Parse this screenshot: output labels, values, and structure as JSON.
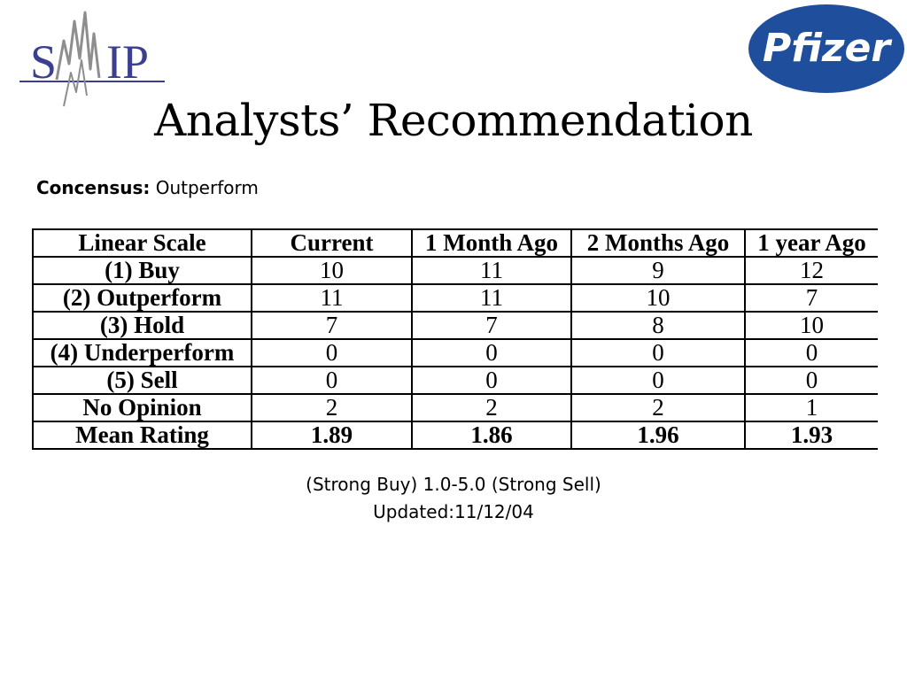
{
  "logos": {
    "smip": {
      "text": "SMIP",
      "color": "#3b3f8f"
    },
    "pfizer": {
      "text": "Pfizer",
      "color": "#1f4f9c"
    }
  },
  "title": "Analysts’ Recommendation",
  "consensus": {
    "label": "Concensus:",
    "value": "Outperform"
  },
  "table": {
    "headers": [
      "Linear Scale",
      "Current",
      "1 Month Ago",
      "2 Months Ago",
      "1 year Ago"
    ],
    "rows": [
      {
        "label": "(1) Buy",
        "values": [
          "10",
          "11",
          "9",
          "12"
        ]
      },
      {
        "label": "(2) Outperform",
        "values": [
          "11",
          "11",
          "10",
          "7"
        ]
      },
      {
        "label": "(3) Hold",
        "values": [
          "7",
          "7",
          "8",
          "10"
        ]
      },
      {
        "label": "(4) Underperform",
        "values": [
          "0",
          "0",
          "0",
          "0"
        ]
      },
      {
        "label": "(5) Sell",
        "values": [
          "0",
          "0",
          "0",
          "0"
        ]
      },
      {
        "label": "No Opinion",
        "values": [
          "2",
          "2",
          "2",
          "1"
        ]
      },
      {
        "label": "Mean Rating",
        "values": [
          "1.89",
          "1.86",
          "1.96",
          "1.93"
        ]
      }
    ]
  },
  "scale_note": "(Strong Buy) 1.0-5.0 (Strong Sell)",
  "updated": "Updated:11/12/04"
}
